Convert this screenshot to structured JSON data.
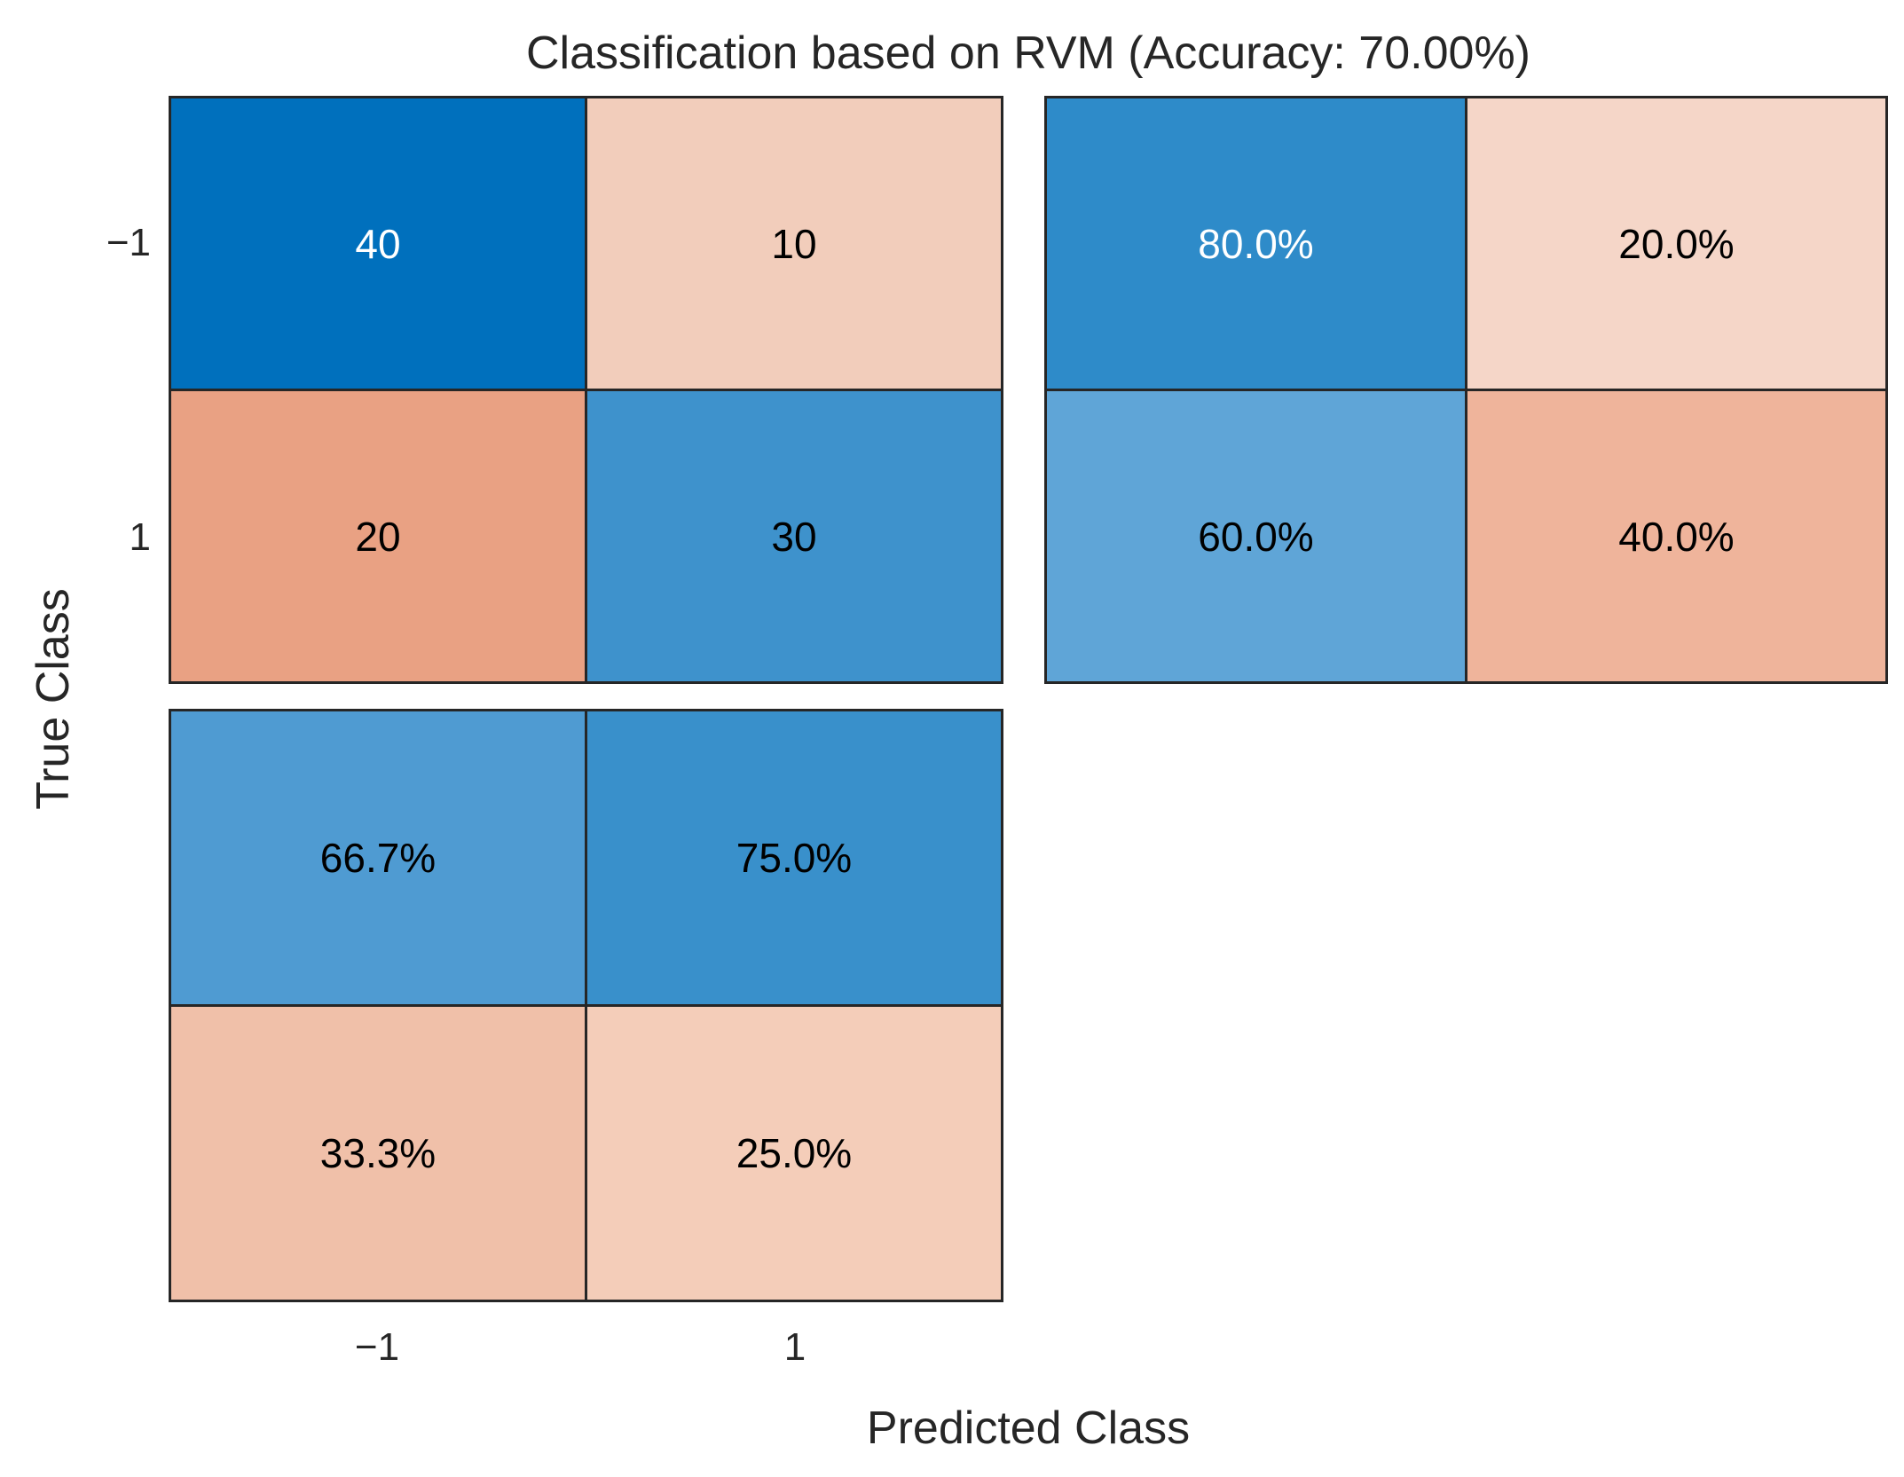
{
  "title": "Classification based on RVM (Accuracy: 70.00%)",
  "axes": {
    "xlabel": "Predicted Class",
    "ylabel": "True Class",
    "x_ticks": [
      "−1",
      "1"
    ],
    "y_ticks": [
      "−1",
      "1"
    ]
  },
  "panels": {
    "matrix": {
      "cells": [
        {
          "label": "40",
          "bg": "#0070BD",
          "fg": "#FFFFFF"
        },
        {
          "label": "10",
          "bg": "#F2CDBB",
          "fg": "#000000"
        },
        {
          "label": "20",
          "bg": "#E9A183",
          "fg": "#000000"
        },
        {
          "label": "30",
          "bg": "#3E92CC",
          "fg": "#000000"
        }
      ]
    },
    "row_summary": {
      "cells": [
        {
          "label": "80.0%",
          "bg": "#2E8BC9",
          "fg": "#FFFFFF"
        },
        {
          "label": "20.0%",
          "bg": "#F5D6C8",
          "fg": "#000000"
        },
        {
          "label": "60.0%",
          "bg": "#5FA5D7",
          "fg": "#000000"
        },
        {
          "label": "40.0%",
          "bg": "#EFB49B",
          "fg": "#000000"
        }
      ]
    },
    "column_summary": {
      "cells": [
        {
          "label": "66.7%",
          "bg": "#4F9BD2",
          "fg": "#000000"
        },
        {
          "label": "75.0%",
          "bg": "#3990CB",
          "fg": "#000000"
        },
        {
          "label": "33.3%",
          "bg": "#F0C0A9",
          "fg": "#000000"
        },
        {
          "label": "25.0%",
          "bg": "#F4CDB9",
          "fg": "#000000"
        }
      ]
    }
  },
  "colors": {
    "border": "#262626",
    "background": "#FFFFFF",
    "correct_blue_dark": "#0070BD",
    "incorrect_orange": "#E9A183"
  },
  "chart_data": {
    "type": "heatmap",
    "subtype": "confusion-matrix-with-summaries",
    "title": "Classification based on RVM (Accuracy: 70.00%)",
    "xlabel": "Predicted Class",
    "ylabel": "True Class",
    "classes": [
      "-1",
      "1"
    ],
    "accuracy_percent": 70.0,
    "confusion_counts": {
      "rows_are_true_class": [
        "-1",
        "1"
      ],
      "cols_are_predicted_class": [
        "-1",
        "1"
      ],
      "values": [
        [
          40,
          10
        ],
        [
          20,
          30
        ]
      ]
    },
    "row_summary_percent": {
      "description": "per true class: correct vs incorrect rate",
      "values": [
        [
          80.0,
          20.0
        ],
        [
          60.0,
          40.0
        ]
      ]
    },
    "column_summary_percent": {
      "description": "per predicted class: precision vs error rate",
      "values": [
        [
          66.7,
          75.0
        ],
        [
          33.3,
          25.0
        ]
      ]
    },
    "legend_position": "none",
    "grid": false
  }
}
